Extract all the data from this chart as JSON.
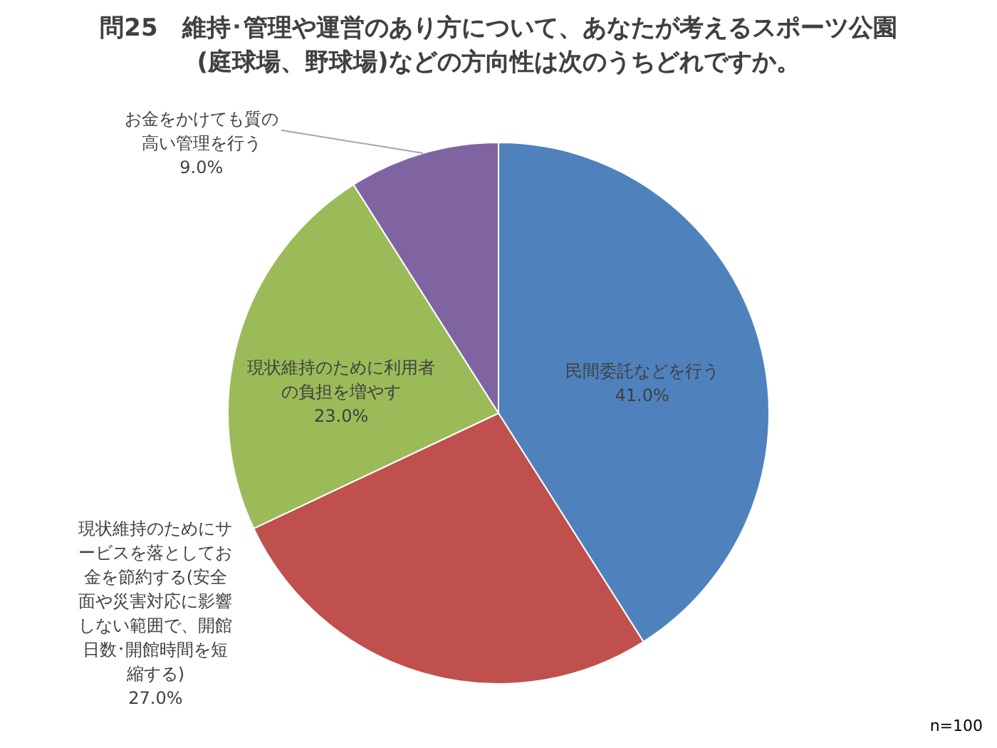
{
  "chart_data": {
    "type": "pie",
    "title": "問25　維持･管理や運営のあり方について、あなたが考えるスポーツ公園(庭球場、野球場)などの方向性は次のうちどれですか。",
    "categories": [
      "民間委託などを行う",
      "現状維持のためにサービスを落としてお金を節約する(安全面や災害対応に影響しない範囲で、開館日数･開館時間を短縮する)",
      "現状維持のために利用者の負担を増やす",
      "お金をかけても質の高い管理を行う"
    ],
    "values": [
      41.0,
      27.0,
      23.0,
      9.0
    ],
    "colors": [
      "#4f81bd",
      "#c0504d",
      "#9bbb59",
      "#8064a2"
    ],
    "value_labels": [
      "41.0%",
      "27.0%",
      "23.0%",
      "9.0%"
    ],
    "annotations": [
      "n=100"
    ]
  }
}
